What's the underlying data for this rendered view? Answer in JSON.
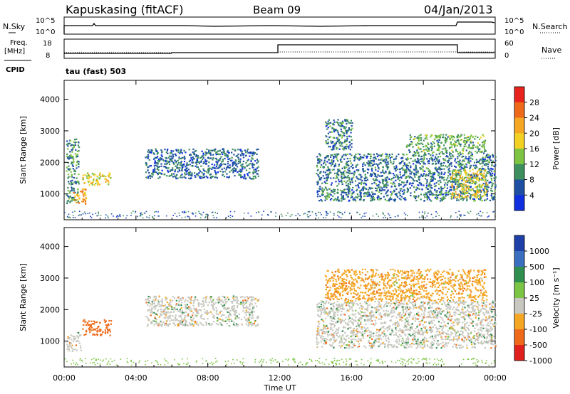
{
  "header": {
    "station": "Kapuskasing (fitACF)",
    "beam": "Beam 09",
    "date": "04/Jan/2013"
  },
  "top_panels": {
    "nsky_label": "N.Sky",
    "nsearch_label": "N.Search",
    "nsky_ticks": [
      "10^5",
      "10^0"
    ],
    "nsearch_ticks": [
      "10^5",
      "10^0"
    ],
    "freq_label_line1": "Freq.",
    "freq_label_line2": "[MHz]",
    "freq_ticks": [
      "18",
      "8"
    ],
    "nave_label": "Nave",
    "nave_ticks": [
      "60",
      "0"
    ],
    "cpid_label": "CPID",
    "cpid_value": "tau (fast) 503"
  },
  "axes": {
    "ylabel": "Slant Range [km]",
    "yticks": [
      "4000",
      "3000",
      "2000",
      "1000"
    ],
    "xticks": [
      "00:00",
      "04:00",
      "08:00",
      "12:00",
      "16:00",
      "20:00",
      "00:00"
    ],
    "xlabel": "Time UT"
  },
  "power_colorbar": {
    "label": "Power [dB]",
    "ticks": [
      "28",
      "24",
      "20",
      "16",
      "12",
      "8",
      "4"
    ],
    "colors": [
      "#e8221c",
      "#ee6a1a",
      "#f5a623",
      "#f2d024",
      "#7dc443",
      "#3e8f5e",
      "#1f4fa3",
      "#1030e0"
    ]
  },
  "velocity_colorbar": {
    "label": "Velocity [m s⁻¹]",
    "ticks": [
      "1000",
      "500",
      "100",
      "25",
      "-25",
      "-100",
      "-500",
      "-1000"
    ],
    "colors": [
      "#1f3fa8",
      "#3a6fbf",
      "#2f8f4f",
      "#7cc443",
      "#c8c8c0",
      "#f5a623",
      "#ee6a1a",
      "#e0201c"
    ]
  },
  "chart_data": [
    {
      "type": "heatmap",
      "panel": "power",
      "x_range_hours": [
        0,
        24
      ],
      "y_range_km": [
        180,
        4600
      ],
      "cbar_range_db": [
        0,
        32
      ],
      "regions": [
        {
          "t0": 0.1,
          "t1": 0.8,
          "r0": 700,
          "r1": 2800,
          "p": 10
        },
        {
          "t0": 0.5,
          "t1": 1.2,
          "r0": 700,
          "r1": 1200,
          "p": 22
        },
        {
          "t0": 1.0,
          "t1": 2.6,
          "r0": 1300,
          "r1": 1700,
          "p": 18
        },
        {
          "t0": 4.5,
          "t1": 10.8,
          "r0": 1500,
          "r1": 2450,
          "p": 7
        },
        {
          "t0": 14.5,
          "t1": 16.0,
          "r0": 2400,
          "r1": 3400,
          "p": 8
        },
        {
          "t0": 14.0,
          "t1": 24.0,
          "r0": 800,
          "r1": 2300,
          "p": 8
        },
        {
          "t0": 21.5,
          "t1": 23.5,
          "r0": 900,
          "r1": 1800,
          "p": 18
        },
        {
          "t0": 19.0,
          "t1": 23.5,
          "r0": 2300,
          "r1": 2900,
          "p": 12
        }
      ]
    },
    {
      "type": "heatmap",
      "panel": "velocity",
      "x_range_hours": [
        0,
        24
      ],
      "y_range_km": [
        180,
        4600
      ],
      "cbar_range_ms": [
        -1000,
        1000
      ],
      "regions": [
        {
          "t0": 0.1,
          "t1": 0.9,
          "r0": 700,
          "r1": 1300,
          "v": 0
        },
        {
          "t0": 1.0,
          "t1": 2.6,
          "r0": 1200,
          "r1": 1700,
          "v": -200
        },
        {
          "t0": 4.5,
          "t1": 10.8,
          "r0": 1500,
          "r1": 2450,
          "v": 0
        },
        {
          "t0": 14.0,
          "t1": 24.0,
          "r0": 800,
          "r1": 2300,
          "v": 0
        },
        {
          "t0": 14.5,
          "t1": 23.5,
          "r0": 2300,
          "r1": 3300,
          "v": -100
        }
      ]
    }
  ]
}
